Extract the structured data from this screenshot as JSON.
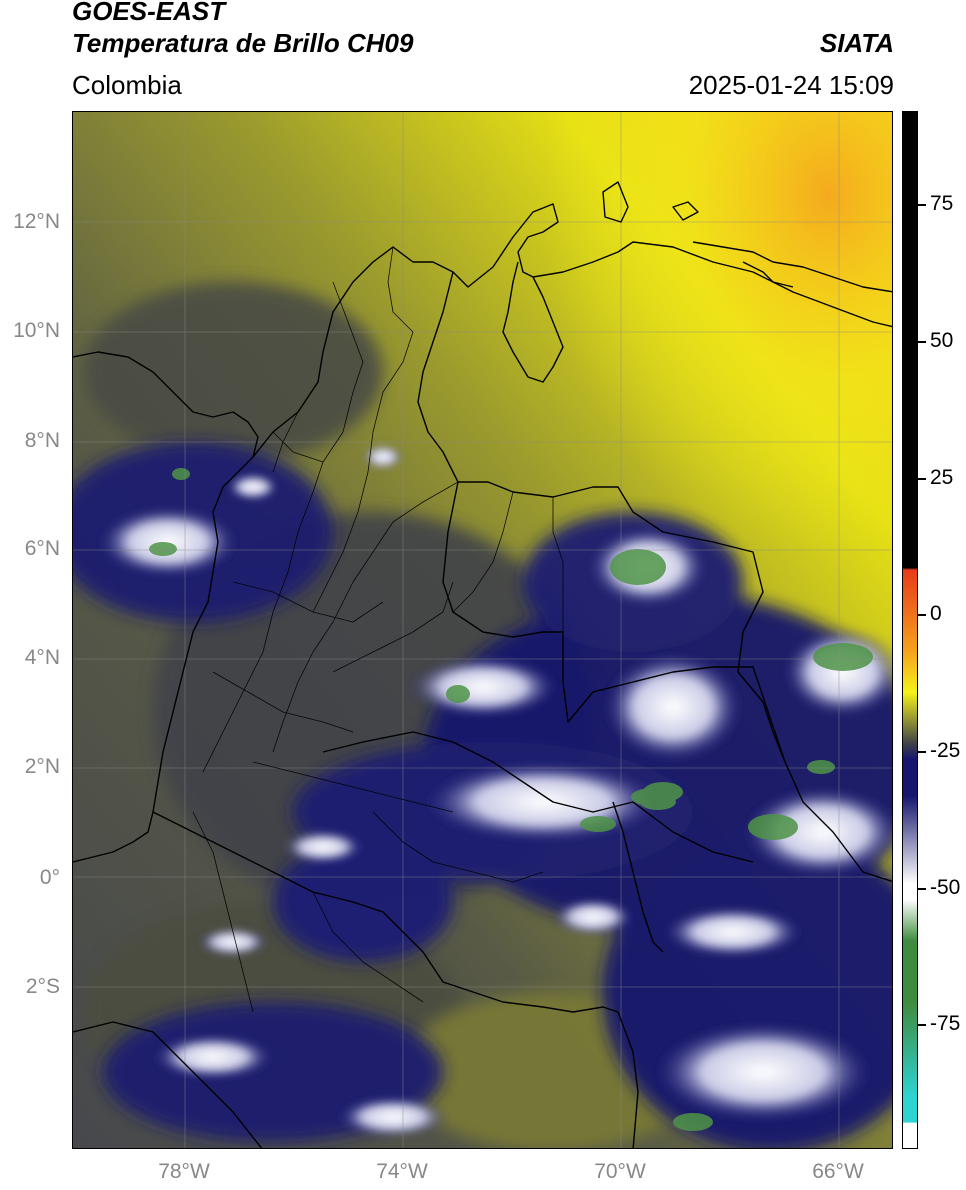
{
  "header": {
    "source": "GOES-EAST",
    "product": "Temperatura de Brillo CH09",
    "agency": "SIATA",
    "region": "Colombia",
    "datetime": "2025-01-24 15:09"
  },
  "map": {
    "lat_labels": [
      "12°N",
      "10°N",
      "8°N",
      "6°N",
      "4°N",
      "2°N",
      "0°",
      "2°S"
    ],
    "lon_labels": [
      "78°W",
      "74°W",
      "70°W",
      "66°W"
    ]
  },
  "colorbar": {
    "tick_labels": [
      "75",
      "50",
      "25",
      "0",
      "-25",
      "-50",
      "-75"
    ],
    "colors": {
      "hot": "#000000",
      "red": "#e83a1a",
      "orange": "#f5a21c",
      "yellow": "#f5f21a",
      "olive": "#9a9a32",
      "dark_gray": "#3e4148",
      "navy": "#16166e",
      "white": "#ffffff",
      "green": "#3f8c3f",
      "cyan": "#2ed3d3"
    }
  }
}
